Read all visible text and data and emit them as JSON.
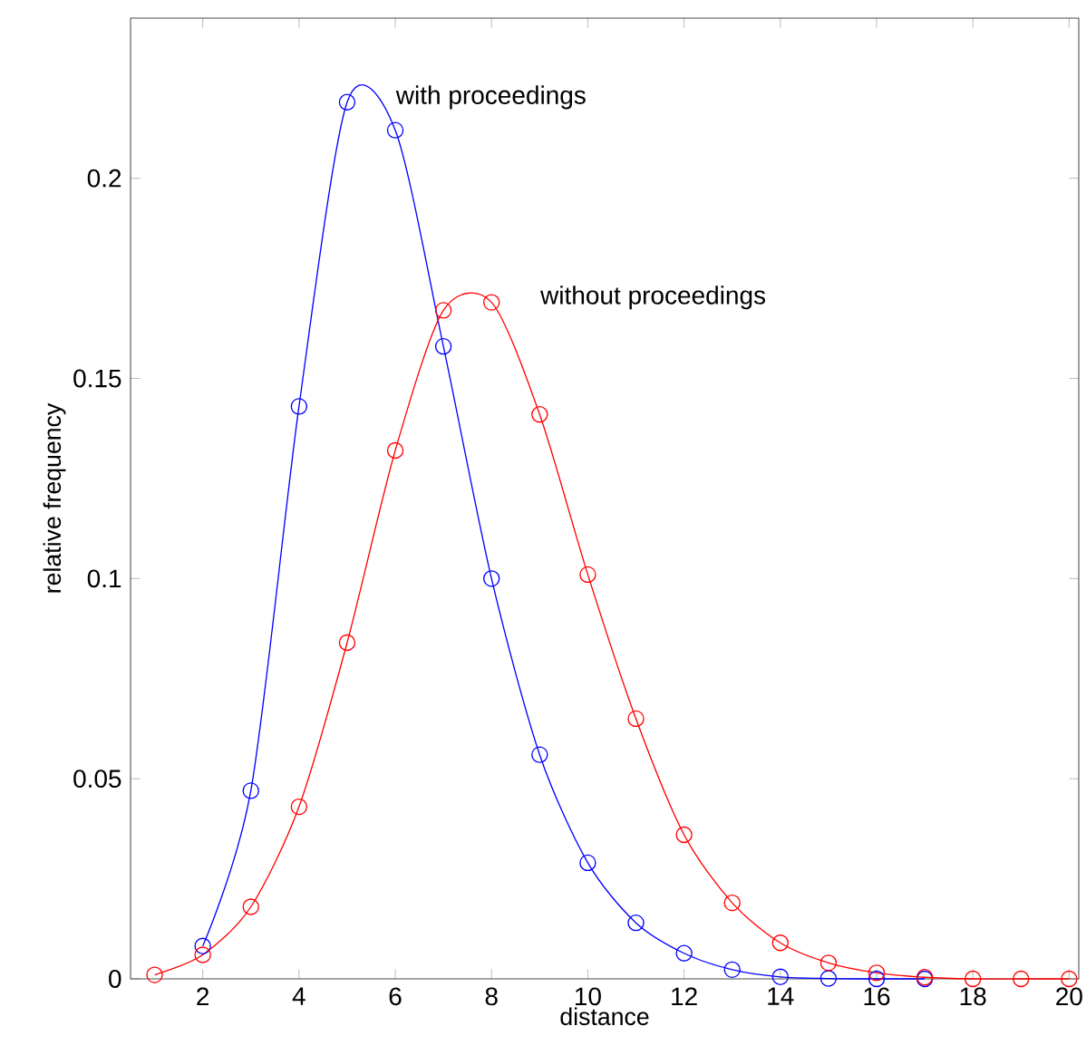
{
  "chart_data": {
    "type": "line",
    "xlabel": "distance",
    "ylabel": "relative frequency",
    "xlim": [
      0.5,
      20.2
    ],
    "ylim": [
      0,
      0.24
    ],
    "xticks": [
      2,
      4,
      6,
      8,
      10,
      12,
      14,
      16,
      18,
      20
    ],
    "yticks": [
      0,
      0.05,
      0.1,
      0.15,
      0.2
    ],
    "marker": "circle",
    "line_style": "solid",
    "grid": false,
    "legend": false,
    "series": [
      {
        "name": "with proceedings",
        "color": "#0000ff",
        "x": [
          2,
          3,
          4,
          5,
          6,
          7,
          8,
          9,
          10,
          11,
          12,
          13,
          14,
          15,
          16,
          17
        ],
        "values": [
          0.0082,
          0.047,
          0.143,
          0.219,
          0.212,
          0.158,
          0.1,
          0.056,
          0.029,
          0.014,
          0.0064,
          0.0023,
          0.0005,
          0.0001,
          0,
          0
        ]
      },
      {
        "name": "without proceedings",
        "color": "#ff0000",
        "x": [
          1,
          2,
          3,
          4,
          5,
          6,
          7,
          8,
          9,
          10,
          11,
          12,
          13,
          14,
          15,
          16,
          17,
          18,
          19,
          20
        ],
        "values": [
          0.001,
          0.006,
          0.018,
          0.043,
          0.084,
          0.132,
          0.167,
          0.169,
          0.141,
          0.101,
          0.065,
          0.036,
          0.019,
          0.009,
          0.004,
          0.0015,
          0.0004,
          0,
          0,
          0
        ]
      }
    ]
  }
}
